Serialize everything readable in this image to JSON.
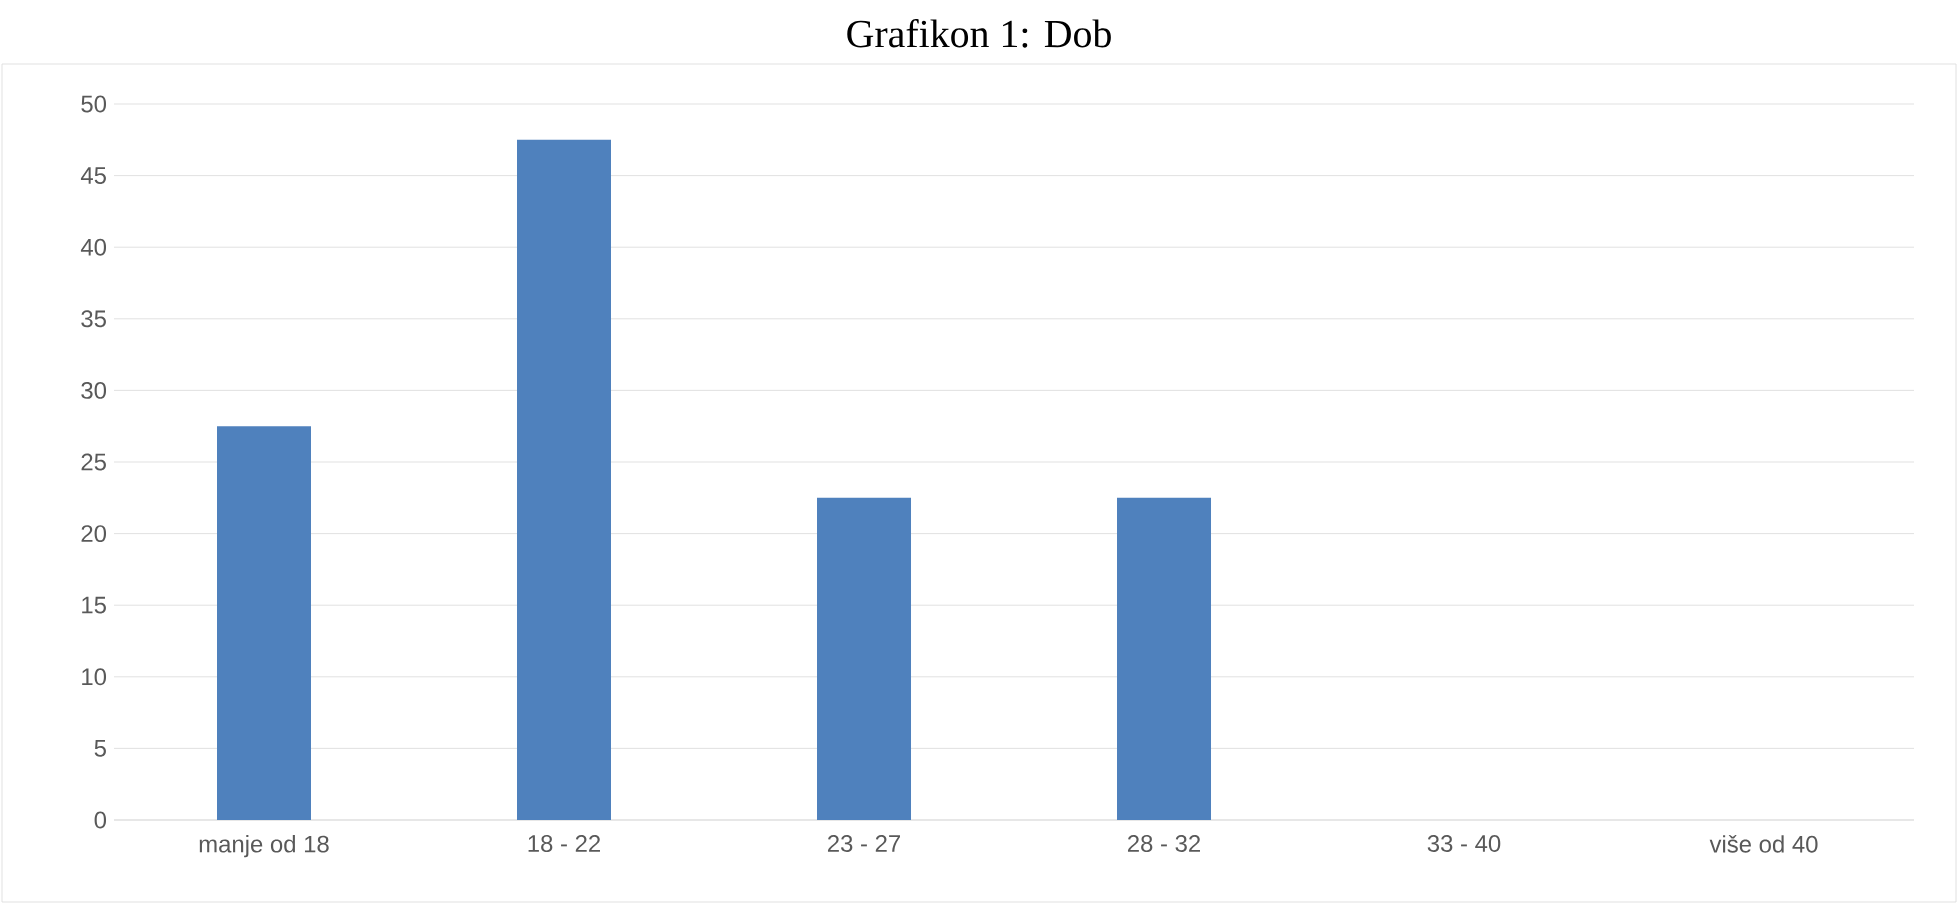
{
  "chart_data": {
    "type": "bar",
    "title": "Grafikon 1: Dob",
    "categories": [
      "manje od 18",
      "18 - 22",
      "23 - 27",
      "28 - 32",
      "33 - 40",
      "više od 40"
    ],
    "values": [
      27.5,
      47.5,
      22.5,
      22.5,
      0,
      0
    ],
    "color": "#4f81bd",
    "ylim": [
      0,
      50
    ],
    "yticks": [
      0,
      5,
      10,
      15,
      20,
      25,
      30,
      35,
      40,
      45,
      50
    ],
    "grid": "y"
  }
}
